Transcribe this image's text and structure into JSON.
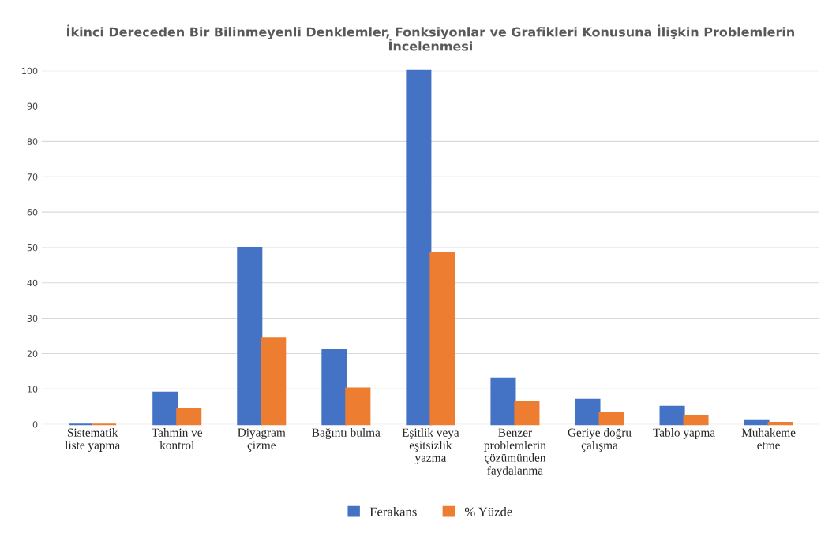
{
  "chart_data": {
    "type": "bar",
    "title": "İkinci Dereceden Bir Bilinmeyenli Denklemler, Fonksiyonlar ve Grafikleri Konusuna İlişkin Problemlerin İncelenmesi",
    "categories": [
      "Sistematik\nliste yapma",
      "Tahmin ve\nkontrol",
      "Diyagram\nçizme",
      "Bağıntı bulma",
      "Eşitlik veya\neşitsizlik\nyazma",
      "Benzer\nproblemlerin\nçözümünden\nfaydalanma",
      "Geriye doğru\nçalışma",
      "Tablo yapma",
      "Muhakeme\netme"
    ],
    "series": [
      {
        "name": "Ferakans",
        "color": "#4472c4",
        "values": [
          0,
          9,
          50,
          21,
          100,
          13,
          7,
          5,
          1
        ]
      },
      {
        "name": "% Yüzde",
        "color": "#ed7d31",
        "values": [
          0,
          4.4,
          24.3,
          10.2,
          48.5,
          6.3,
          3.4,
          2.4,
          0.5
        ]
      }
    ],
    "ylim": [
      0,
      100
    ],
    "yticks": [
      0,
      10,
      20,
      30,
      40,
      50,
      60,
      70,
      80,
      90,
      100
    ],
    "grid": "y",
    "legend": "bottom"
  }
}
